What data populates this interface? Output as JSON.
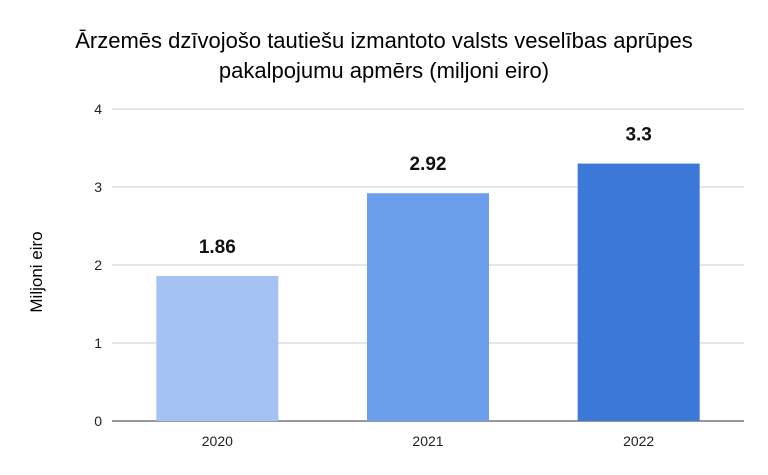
{
  "chart_data": {
    "type": "bar",
    "title_lines": [
      "Ārzemēs dzīvojošo tautiešu izmantoto valsts veselības aprūpes",
      "pakalpojumu apmērs (miljoni eiro)"
    ],
    "xlabel": "",
    "ylabel": "Miljoni eiro",
    "categories": [
      "2020",
      "2021",
      "2022"
    ],
    "values": [
      1.86,
      2.92,
      3.3
    ],
    "data_labels": [
      "1.86",
      "2.92",
      "3.3"
    ],
    "bar_colors": [
      "#a4c2f4",
      "#6d9eeb",
      "#3c78d8"
    ],
    "ylim": [
      0,
      4
    ],
    "yticks": [
      0,
      1,
      2,
      3,
      4
    ],
    "ytick_labels": [
      "0",
      "1",
      "2",
      "3",
      "4"
    ],
    "grid": true,
    "legend": "none"
  }
}
